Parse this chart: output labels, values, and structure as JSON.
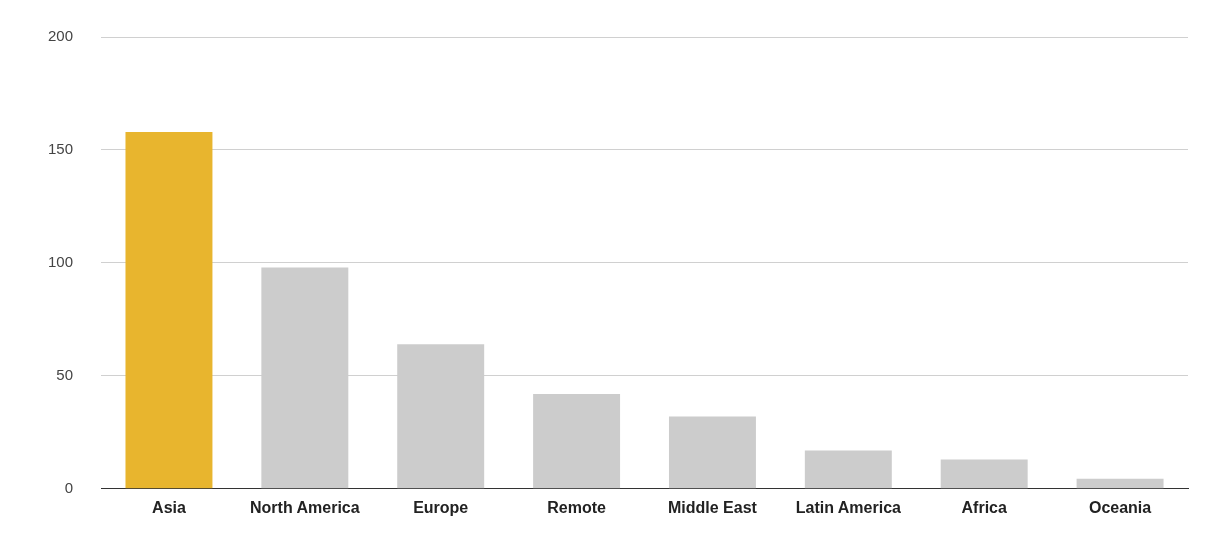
{
  "chart_data": {
    "type": "bar",
    "categories": [
      "Asia",
      "North America",
      "Europe",
      "Remote",
      "Middle East",
      "Latin America",
      "Africa",
      "Oceania"
    ],
    "values": [
      158,
      98,
      64,
      42,
      32,
      17,
      13,
      4.5
    ],
    "colors": [
      "#e8b52e",
      "#cccccc",
      "#cccccc",
      "#cccccc",
      "#cccccc",
      "#cccccc",
      "#cccccc",
      "#cccccc"
    ],
    "ylim": [
      0,
      200
    ],
    "yticks": [
      0,
      50,
      100,
      150,
      200
    ],
    "grid": "y",
    "legend": false
  }
}
